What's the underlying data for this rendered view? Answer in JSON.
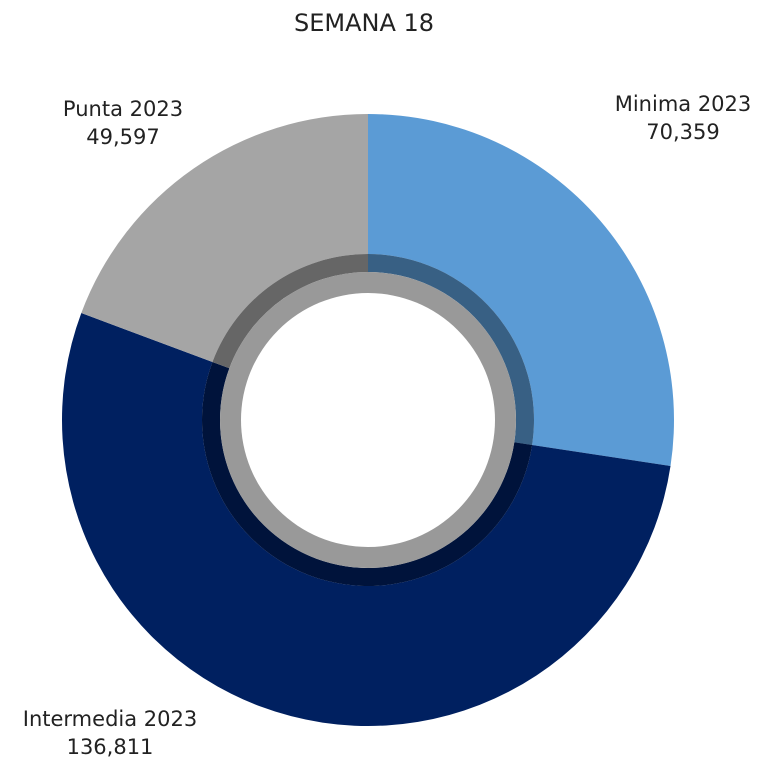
{
  "chart_data": {
    "type": "pie",
    "title": "SEMANA 18",
    "categories": [
      "Minima 2023",
      "Intermedia 2023",
      "Punta 2023"
    ],
    "values": [
      70359,
      136811,
      49597
    ],
    "value_labels": [
      "70,359",
      "136,811",
      "49,597"
    ],
    "colors": [
      "#5b9bd5",
      "#002060",
      "#a5a5a5"
    ]
  }
}
